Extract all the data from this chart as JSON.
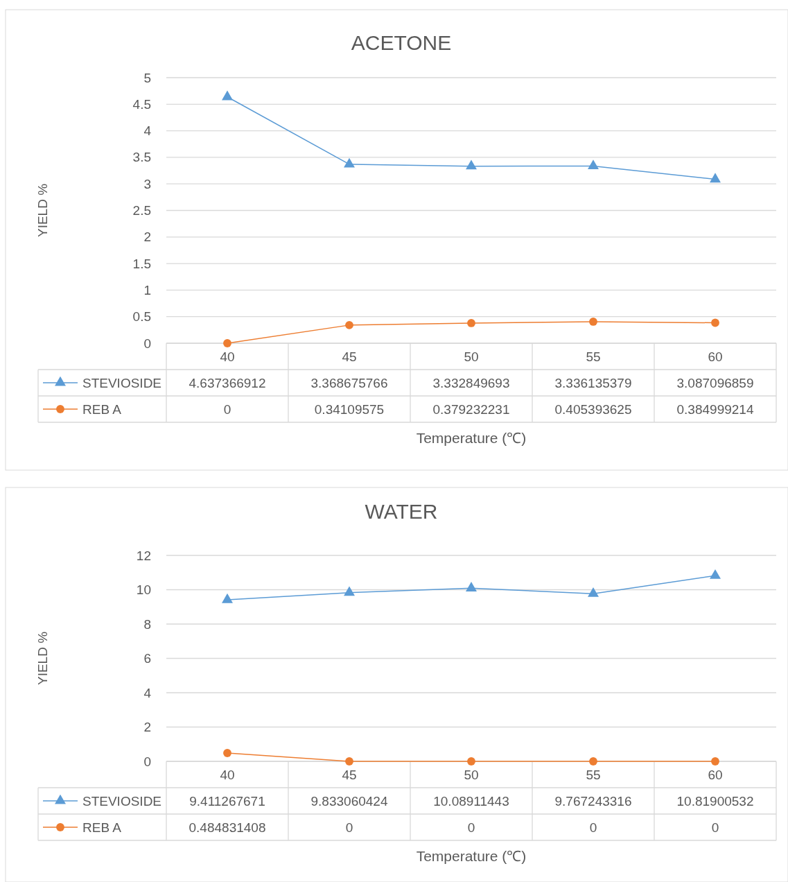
{
  "chart_data": [
    {
      "type": "line",
      "title": "ACETONE",
      "xlabel": "Temperature (℃)",
      "ylabel": "YIELD %",
      "categories": [
        "40",
        "45",
        "50",
        "55",
        "60"
      ],
      "ylim": [
        0,
        5
      ],
      "yticks": [
        0,
        0.5,
        1,
        1.5,
        2,
        2.5,
        3,
        3.5,
        4,
        4.5,
        5
      ],
      "grid": "y",
      "legend": "bottom",
      "data_labels": true,
      "series": [
        {
          "name": "STEVIOSIDE",
          "color": "#5b9bd5",
          "marker": "triangle",
          "values": [
            4.637366912,
            3.368675766,
            3.332849693,
            3.336135379,
            3.087096859
          ]
        },
        {
          "name": "REB A",
          "color": "#ed7d31",
          "marker": "circle",
          "values": [
            0,
            0.34109575,
            0.379232231,
            0.405393625,
            0.384999214
          ]
        }
      ]
    },
    {
      "type": "line",
      "title": "WATER",
      "xlabel": "Temperature (℃)",
      "ylabel": "YIELD %",
      "categories": [
        "40",
        "45",
        "50",
        "55",
        "60"
      ],
      "ylim": [
        0,
        12
      ],
      "yticks": [
        0,
        2,
        4,
        6,
        8,
        10,
        12
      ],
      "grid": "y",
      "legend": "bottom",
      "data_labels": true,
      "series": [
        {
          "name": "STEVIOSIDE",
          "color": "#5b9bd5",
          "marker": "triangle",
          "values": [
            9.411267671,
            9.833060424,
            10.08911443,
            9.767243316,
            10.81900532
          ]
        },
        {
          "name": "REB A",
          "color": "#ed7d31",
          "marker": "circle",
          "values": [
            0.484831408,
            0,
            0,
            0,
            0
          ]
        }
      ]
    }
  ]
}
